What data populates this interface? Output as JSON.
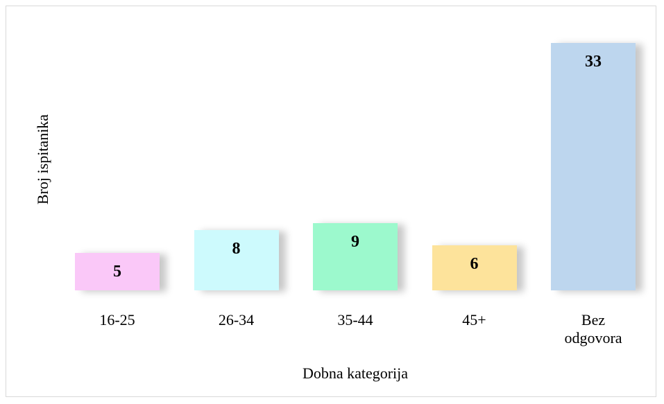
{
  "chart_data": {
    "type": "bar",
    "x_label": "Dobna kategorija",
    "y_label": "Broj ispitanika",
    "categories": [
      "16-25",
      "26-34",
      "35-44",
      "45+",
      "Bez odgovora"
    ],
    "values": [
      5,
      8,
      9,
      6,
      33
    ],
    "colors": [
      "#fac8f8",
      "#cdfafd",
      "#9cf9cd",
      "#fde39b",
      "#bdd6ee"
    ]
  }
}
